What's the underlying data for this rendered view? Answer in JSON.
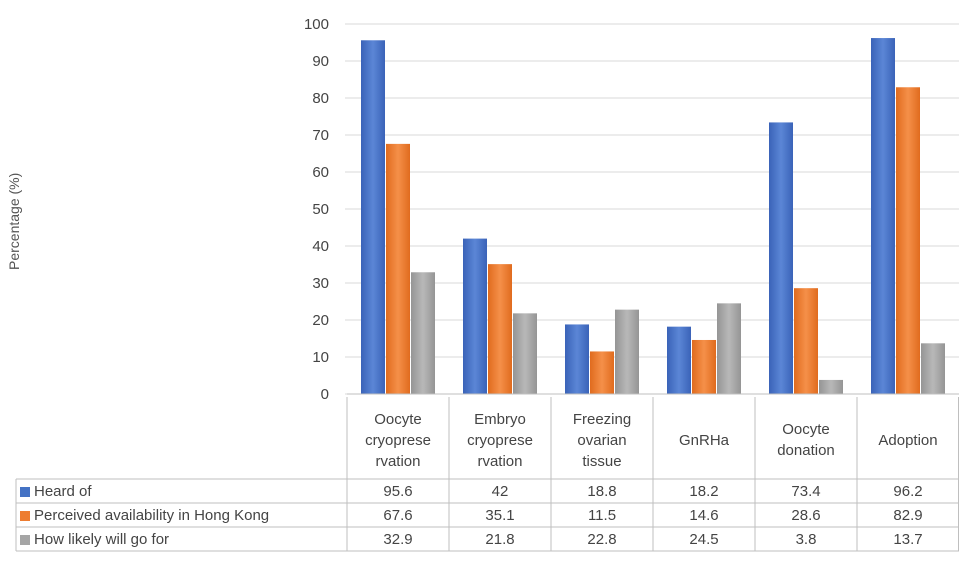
{
  "chart_data": {
    "type": "bar",
    "title": "",
    "xlabel": "",
    "ylabel": "Percentage (%)",
    "ylim": [
      0,
      100
    ],
    "yticks": [
      0,
      10,
      20,
      30,
      40,
      50,
      60,
      70,
      80,
      90,
      100
    ],
    "grid": true,
    "legend": "data-table",
    "categories": [
      "Oocyte cryopreservation",
      "Embryo cryopreservation",
      "Freezing ovarian tissue",
      "GnRHa",
      "Oocyte donation",
      "Adoption"
    ],
    "category_lines": [
      [
        "Oocyte",
        "cryoprese",
        "rvation"
      ],
      [
        "Embryo",
        "cryoprese",
        "rvation"
      ],
      [
        "Freezing",
        "ovarian",
        "tissue"
      ],
      [
        "GnRHa"
      ],
      [
        "Oocyte",
        "donation"
      ],
      [
        "Adoption"
      ]
    ],
    "series": [
      {
        "name": "Heard of",
        "color": "#4472C4",
        "values": [
          95.6,
          42,
          18.8,
          18.2,
          73.4,
          96.2
        ]
      },
      {
        "name": "Perceived availability in Hong Kong",
        "color": "#ED7D31",
        "values": [
          67.6,
          35.1,
          11.5,
          14.6,
          28.6,
          82.9
        ]
      },
      {
        "name": "How likely will go for",
        "color": "#A5A5A5",
        "values": [
          32.9,
          21.8,
          22.8,
          24.5,
          3.8,
          13.7
        ]
      }
    ]
  }
}
